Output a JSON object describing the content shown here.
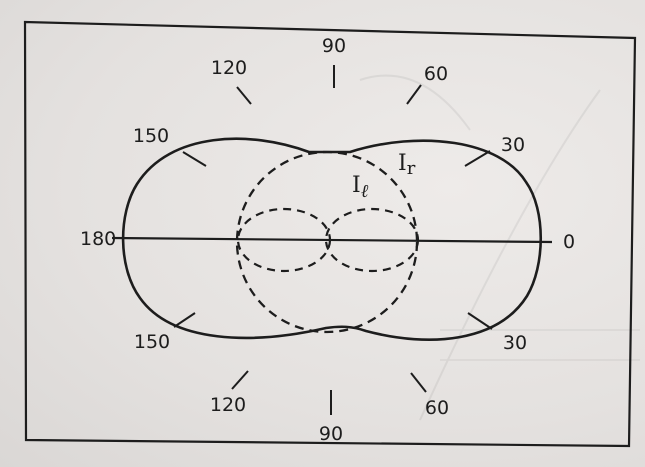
{
  "angles": {
    "a0": "0",
    "a30_upper": "30",
    "a60_upper": "60",
    "a90_upper": "90",
    "a120_upper": "120",
    "a150_upper": "150",
    "a180": "180",
    "a150_lower": "150",
    "a120_lower": "120",
    "a90_lower": "90",
    "a60_lower": "60",
    "a30_lower": "30"
  },
  "curves": {
    "left_label_main": "I",
    "left_label_sub": "ℓ",
    "right_label_main": "I",
    "right_label_sub": "r"
  },
  "colors": {
    "ink": "#1d1d1d",
    "paper": "#e9e6e4"
  }
}
